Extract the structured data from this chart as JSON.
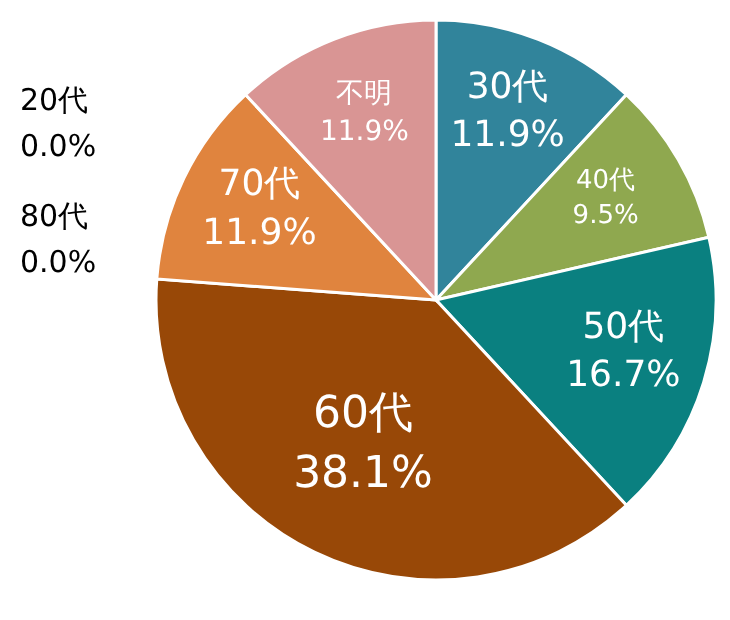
{
  "chart_data": {
    "type": "pie",
    "categories": [
      "30代",
      "40代",
      "50代",
      "60代",
      "70代",
      "不明"
    ],
    "values": [
      11.9,
      9.5,
      16.7,
      38.1,
      11.9,
      11.9
    ],
    "value_labels": [
      "11.9%",
      "9.5%",
      "16.7%",
      "38.1%",
      "11.9%",
      "11.9%"
    ],
    "colors": [
      "#31849b",
      "#8fa84f",
      "#0a8080",
      "#984807",
      "#e0843e",
      "#d99594"
    ],
    "annotations": [
      "20代",
      "0.0%",
      "80代",
      "0.0%"
    ]
  }
}
